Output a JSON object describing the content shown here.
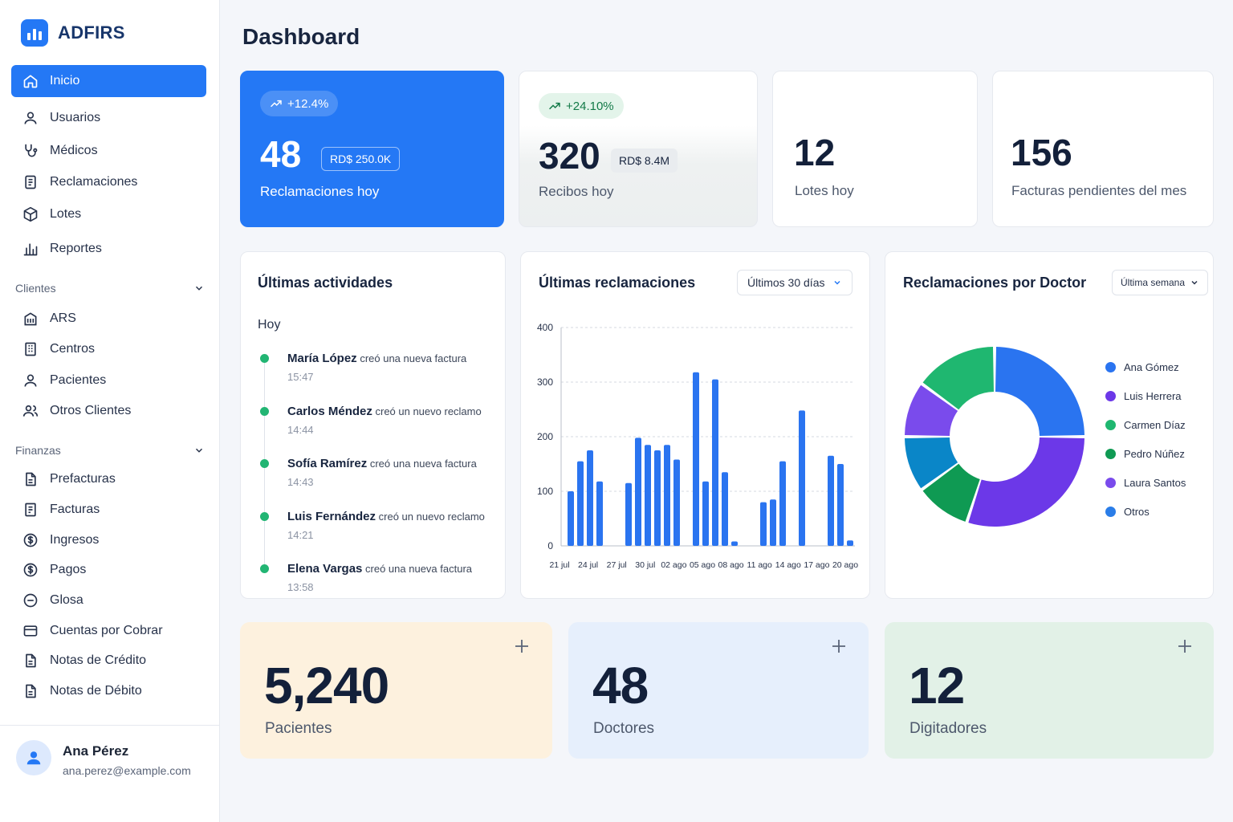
{
  "brand": {
    "name": "ADFIRS"
  },
  "sidebar": {
    "main_items": [
      {
        "label": "Inicio",
        "icon": "home-icon",
        "active": true
      },
      {
        "label": "Usuarios",
        "icon": "user-icon"
      },
      {
        "label": "Médicos",
        "icon": "stethoscope-icon"
      },
      {
        "label": "Reclamaciones",
        "icon": "document-icon"
      },
      {
        "label": "Lotes",
        "icon": "box-icon"
      },
      {
        "label": "Reportes",
        "icon": "bar-chart-icon"
      }
    ],
    "clientes": {
      "title": "Clientes",
      "items": [
        {
          "label": "ARS",
          "icon": "building-icon"
        },
        {
          "label": "Centros",
          "icon": "office-icon"
        },
        {
          "label": "Pacientes",
          "icon": "user-icon"
        },
        {
          "label": "Otros Clientes",
          "icon": "users-icon"
        }
      ]
    },
    "finanzas": {
      "title": "Finanzas",
      "items": [
        {
          "label": "Prefacturas",
          "icon": "file-icon"
        },
        {
          "label": "Facturas",
          "icon": "invoice-icon"
        },
        {
          "label": "Ingresos",
          "icon": "dollar-circle-icon"
        },
        {
          "label": "Pagos",
          "icon": "dollar-circle-icon"
        },
        {
          "label": "Glosa",
          "icon": "minus-circle-icon"
        },
        {
          "label": "Cuentas por Cobrar",
          "icon": "card-icon"
        },
        {
          "label": "Notas de Crédito",
          "icon": "file-icon"
        },
        {
          "label": "Notas de Débito",
          "icon": "file-icon"
        }
      ]
    }
  },
  "user": {
    "name": "Ana Pérez",
    "email": "ana.perez@example.com"
  },
  "page": {
    "title": "Dashboard"
  },
  "stats": {
    "reclamaciones": {
      "trend": "+12.4%",
      "value": "48",
      "amount": "RD$ 250.0K",
      "label": "Reclamaciones hoy"
    },
    "recibos": {
      "trend": "+24.10%",
      "value": "320",
      "amount": "RD$ 8.4M",
      "label": "Recibos hoy"
    },
    "lotes": {
      "value": "12",
      "label": "Lotes hoy"
    },
    "facturas": {
      "value": "156",
      "label": "Facturas pendientes del mes"
    }
  },
  "activities": {
    "title": "Últimas actividades",
    "group": "Hoy",
    "items": [
      {
        "name": "María López",
        "action": "creó una nueva factura",
        "time": "15:47"
      },
      {
        "name": "Carlos Méndez",
        "action": "creó un nuevo reclamo",
        "time": "14:44"
      },
      {
        "name": "Sofía Ramírez",
        "action": "creó una nueva factura",
        "time": "14:43"
      },
      {
        "name": "Luis Fernández",
        "action": "creó un nuevo reclamo",
        "time": "14:21"
      },
      {
        "name": "Elena Vargas",
        "action": "creó una nueva factura",
        "time": "13:58"
      }
    ]
  },
  "claims_chart": {
    "title": "Últimas reclamaciones",
    "filter": "Últimos 30 días"
  },
  "doctor_chart": {
    "title": "Reclamaciones por Doctor",
    "filter": "Última semana"
  },
  "chart_data": [
    {
      "type": "bar",
      "title": "Últimas reclamaciones",
      "ylim": [
        0,
        400
      ],
      "yticks": [
        0,
        100,
        200,
        300,
        400
      ],
      "xtick_labels": [
        "21 jul",
        "24 jul",
        "27 jul",
        "30 jul",
        "02 ago",
        "05 ago",
        "08 ago",
        "11 ago",
        "14 ago",
        "17 ago",
        "20 ago"
      ],
      "values": [
        100,
        155,
        175,
        118,
        0,
        0,
        115,
        198,
        185,
        175,
        185,
        158,
        0,
        318,
        118,
        305,
        135,
        8,
        0,
        0,
        80,
        85,
        155,
        0,
        248,
        0,
        0,
        165,
        150,
        10
      ],
      "color": "#2a74f0"
    },
    {
      "type": "pie",
      "title": "Reclamaciones por Doctor",
      "labels": [
        "Ana Gómez",
        "Luis Herrera",
        "Carmen Díaz",
        "Pedro Núñez",
        "Laura Santos",
        "Otros"
      ],
      "legend_colors": [
        "#2a74f0",
        "#6c38e8",
        "#1fb770",
        "#0f9a53",
        "#7a4bec",
        "#2a7de8"
      ],
      "segments": [
        {
          "value": 25,
          "color": "#2a74f0"
        },
        {
          "value": 30,
          "color": "#6c38e8"
        },
        {
          "value": 10,
          "color": "#0f9a53"
        },
        {
          "value": 10,
          "color": "#0a86c8"
        },
        {
          "value": 10,
          "color": "#7a4bec"
        },
        {
          "value": 15,
          "color": "#1fb770"
        }
      ]
    }
  ],
  "summary": [
    {
      "value": "5,240",
      "label": "Pacientes",
      "bg": "#fdf1de"
    },
    {
      "value": "48",
      "label": "Doctores",
      "bg": "#e6effc"
    },
    {
      "value": "12",
      "label": "Digitadores",
      "bg": "#e2f1e7"
    }
  ]
}
